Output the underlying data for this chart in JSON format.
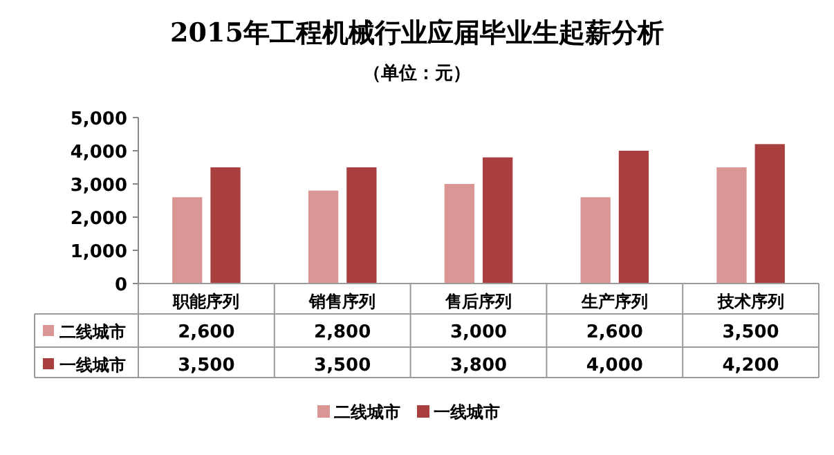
{
  "chart_data": {
    "type": "bar",
    "title": "2015年工程机械行业应届毕业生起薪分析",
    "subtitle": "（单位：元）",
    "categories": [
      "职能序列",
      "销售序列",
      "售后序列",
      "生产序列",
      "技术序列"
    ],
    "series": [
      {
        "name": "二线城市",
        "color": "#d99694",
        "values": [
          2600,
          2800,
          3000,
          2600,
          3500
        ],
        "value_labels": [
          "2,600",
          "2,800",
          "3,000",
          "2,600",
          "3,500"
        ]
      },
      {
        "name": "一线城市",
        "color": "#a9403f",
        "values": [
          3500,
          3500,
          3800,
          4000,
          4200
        ],
        "value_labels": [
          "3,500",
          "3,500",
          "3,800",
          "4,000",
          "4,200"
        ]
      }
    ],
    "ylim": [
      0,
      5000
    ],
    "yticks": [
      {
        "value": 0,
        "label": "0"
      },
      {
        "value": 1000,
        "label": "1,000"
      },
      {
        "value": 2000,
        "label": "2,000"
      },
      {
        "value": 3000,
        "label": "3,000"
      },
      {
        "value": 4000,
        "label": "4,000"
      },
      {
        "value": 5000,
        "label": "5,000"
      }
    ],
    "legend": "bottom"
  }
}
